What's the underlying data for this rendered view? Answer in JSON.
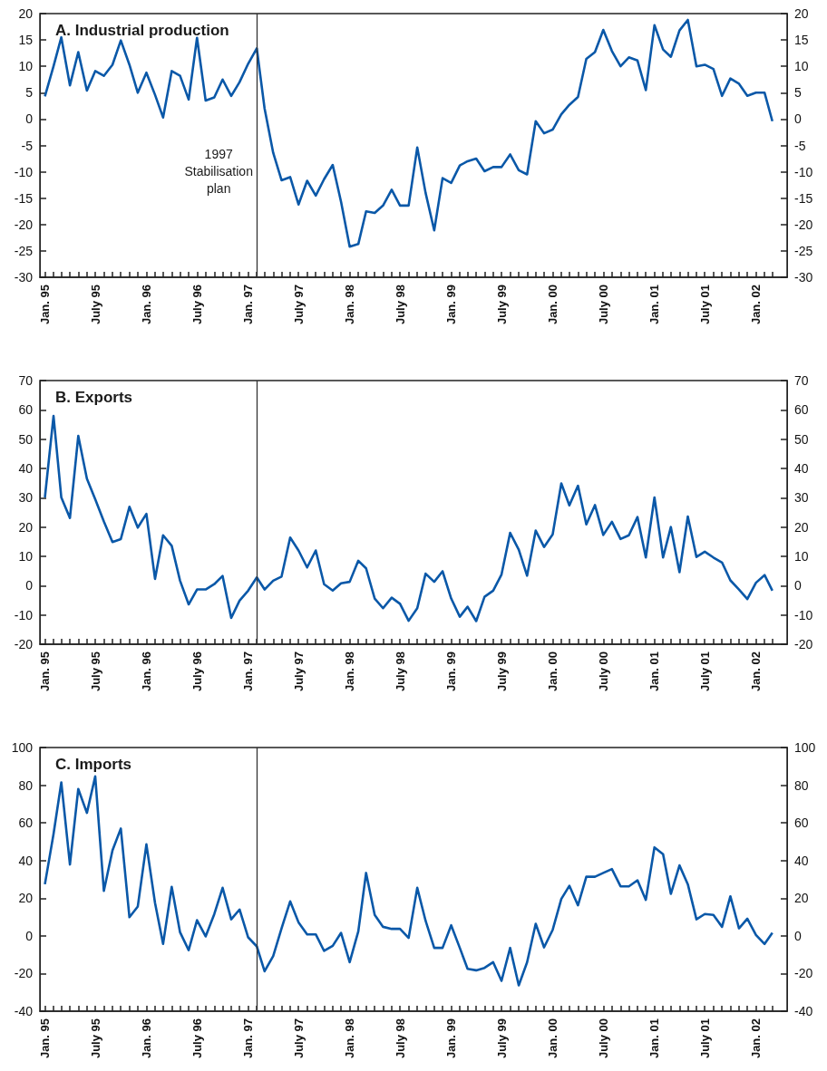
{
  "chart_data": [
    {
      "type": "line",
      "title": "A. Industrial production",
      "color": "#0a58a8",
      "marker": "none",
      "x": [
        "1995-01",
        "1995-02",
        "1995-03",
        "1995-04",
        "1995-05",
        "1995-06",
        "1995-07",
        "1995-08",
        "1995-09",
        "1995-10",
        "1995-11",
        "1995-12",
        "1996-01",
        "1996-02",
        "1996-03",
        "1996-04",
        "1996-05",
        "1996-06",
        "1996-07",
        "1996-08",
        "1996-09",
        "1996-10",
        "1996-11",
        "1996-12",
        "1997-01",
        "1997-02",
        "1997-03",
        "1997-04",
        "1997-05",
        "1997-06",
        "1997-07",
        "1997-08",
        "1997-09",
        "1997-10",
        "1997-11",
        "1997-12",
        "1998-01",
        "1998-02",
        "1998-03",
        "1998-04",
        "1998-05",
        "1998-06",
        "1998-07",
        "1998-08",
        "1998-09",
        "1998-10",
        "1998-11",
        "1998-12",
        "1999-01",
        "1999-02",
        "1999-03",
        "1999-04",
        "1999-05",
        "1999-06",
        "1999-07",
        "1999-08",
        "1999-09",
        "1999-10",
        "1999-11",
        "1999-12",
        "2000-01",
        "2000-02",
        "2000-03",
        "2000-04",
        "2000-05",
        "2000-06",
        "2000-07",
        "2000-08",
        "2000-09",
        "2000-10",
        "2000-11",
        "2000-12",
        "2001-01",
        "2001-02",
        "2001-03",
        "2001-04",
        "2001-05",
        "2001-06",
        "2001-07",
        "2001-08",
        "2001-09",
        "2001-10",
        "2001-11",
        "2001-12",
        "2002-01",
        "2002-02",
        "2002-03"
      ],
      "values": [
        4.3,
        10.0,
        15.5,
        6.4,
        12.7,
        5.4,
        9.1,
        8.2,
        10.3,
        14.9,
        10.3,
        5.0,
        8.8,
        4.6,
        0.3,
        9.1,
        8.2,
        3.7,
        15.4,
        3.5,
        4.1,
        7.5,
        4.4,
        7.0,
        10.5,
        13.4,
        2.0,
        -6.4,
        -11.6,
        -11.0,
        -16.2,
        -11.7,
        -14.5,
        -11.4,
        -8.7,
        -15.7,
        -24.2,
        -23.7,
        -17.5,
        -17.8,
        -16.4,
        -13.4,
        -16.4,
        -16.4,
        -5.4,
        -14.0,
        -21.1,
        -11.2,
        -12.1,
        -8.8,
        -8.0,
        -7.5,
        -9.9,
        -9.1,
        -9.1,
        -6.7,
        -9.7,
        -10.5,
        -0.4,
        -2.7,
        -2.0,
        0.9,
        2.7,
        4.2,
        11.4,
        12.7,
        16.9,
        12.9,
        10.0,
        11.7,
        11.1,
        5.5,
        17.8,
        13.2,
        11.8,
        16.8,
        18.8,
        10.0,
        10.3,
        9.5,
        4.4,
        7.7,
        6.7,
        4.4,
        5.0,
        5.0,
        -0.4
      ],
      "xlim": [
        "1994-12-14",
        "2002-04-23"
      ],
      "xticks": [
        {
          "value": "1995-01",
          "label": "Jan. 95"
        },
        {
          "value": "1995-07",
          "label": "July 95"
        },
        {
          "value": "1996-01",
          "label": "Jan. 96"
        },
        {
          "value": "1996-07",
          "label": "July 96"
        },
        {
          "value": "1997-01",
          "label": "Jan. 97"
        },
        {
          "value": "1997-07",
          "label": "July 97"
        },
        {
          "value": "1998-01",
          "label": "Jan. 98"
        },
        {
          "value": "1998-07",
          "label": "July 98"
        },
        {
          "value": "1999-01",
          "label": "Jan. 99"
        },
        {
          "value": "1999-07",
          "label": "July 99"
        },
        {
          "value": "2000-01",
          "label": "Jan. 00"
        },
        {
          "value": "2000-07",
          "label": "July 00"
        },
        {
          "value": "2001-01",
          "label": "Jan. 01"
        },
        {
          "value": "2001-07",
          "label": "July 01"
        },
        {
          "value": "2002-01",
          "label": "Jan. 02"
        }
      ],
      "ylim": [
        -30,
        20
      ],
      "yticks": [
        -30,
        -25,
        -20,
        -15,
        -10,
        -5,
        0,
        5,
        10,
        15,
        20
      ],
      "y2lim": [
        -30,
        20
      ],
      "y2ticks": [
        -30,
        -25,
        -20,
        -15,
        -10,
        -5,
        0,
        5,
        10,
        15,
        20
      ],
      "ref_lines": [
        {
          "axis": "x",
          "value": "1997-02",
          "label": "1997 Stabilisation plan",
          "color": "#333333"
        }
      ]
    },
    {
      "type": "line",
      "title": "B. Exports",
      "color": "#0a58a8",
      "marker": "none",
      "x": [
        "1995-01",
        "1995-02",
        "1995-03",
        "1995-04",
        "1995-05",
        "1995-06",
        "1995-07",
        "1995-08",
        "1995-09",
        "1995-10",
        "1995-11",
        "1995-12",
        "1996-01",
        "1996-02",
        "1996-03",
        "1996-04",
        "1996-05",
        "1996-06",
        "1996-07",
        "1996-08",
        "1996-09",
        "1996-10",
        "1996-11",
        "1996-12",
        "1997-01",
        "1997-02",
        "1997-03",
        "1997-04",
        "1997-05",
        "1997-06",
        "1997-07",
        "1997-08",
        "1997-09",
        "1997-10",
        "1997-11",
        "1997-12",
        "1998-01",
        "1998-02",
        "1998-03",
        "1998-04",
        "1998-05",
        "1998-06",
        "1998-07",
        "1998-08",
        "1998-09",
        "1998-10",
        "1998-11",
        "1998-12",
        "1999-01",
        "1999-02",
        "1999-03",
        "1999-04",
        "1999-05",
        "1999-06",
        "1999-07",
        "1999-08",
        "1999-09",
        "1999-10",
        "1999-11",
        "1999-12",
        "2000-01",
        "2000-02",
        "2000-03",
        "2000-04",
        "2000-05",
        "2000-06",
        "2000-07",
        "2000-08",
        "2000-09",
        "2000-10",
        "2000-11",
        "2000-12",
        "2001-01",
        "2001-02",
        "2001-03",
        "2001-04",
        "2001-05",
        "2001-06",
        "2001-07",
        "2001-08",
        "2001-09",
        "2001-10",
        "2001-11",
        "2001-12",
        "2002-01",
        "2002-02",
        "2002-03"
      ],
      "values": [
        30.1,
        57.9,
        30.1,
        23.1,
        51.1,
        36.5,
        29.5,
        21.9,
        14.9,
        15.9,
        26.9,
        19.8,
        24.5,
        2.3,
        17.2,
        13.6,
        1.7,
        -6.4,
        -1.3,
        -1.3,
        0.5,
        3.3,
        -11.0,
        -5.1,
        -1.7,
        2.8,
        -1.3,
        1.7,
        3.1,
        16.4,
        12.0,
        6.2,
        12.0,
        0.5,
        -1.7,
        0.8,
        1.3,
        8.5,
        5.9,
        -4.4,
        -7.7,
        -4.1,
        -6.2,
        -12.0,
        -7.7,
        4.1,
        1.3,
        4.9,
        -4.4,
        -10.6,
        -7.2,
        -12.1,
        -3.8,
        -1.7,
        3.8,
        18.0,
        12.3,
        3.4,
        18.8,
        13.2,
        17.5,
        34.9,
        27.4,
        34.1,
        20.9,
        27.5,
        17.3,
        21.8,
        15.9,
        17.2,
        23.4,
        9.6,
        30.1,
        9.6,
        20.0,
        4.6,
        23.6,
        9.8,
        11.6,
        9.6,
        7.9,
        1.8,
        -1.3,
        -4.6,
        1.0,
        3.6,
        -1.7
      ],
      "xlim": [
        "1994-12-14",
        "2002-04-23"
      ],
      "xticks": [
        {
          "value": "1995-01",
          "label": "Jan. 95"
        },
        {
          "value": "1995-07",
          "label": "July 95"
        },
        {
          "value": "1996-01",
          "label": "Jan. 96"
        },
        {
          "value": "1996-07",
          "label": "July 96"
        },
        {
          "value": "1997-01",
          "label": "Jan. 97"
        },
        {
          "value": "1997-07",
          "label": "July 97"
        },
        {
          "value": "1998-01",
          "label": "Jan. 98"
        },
        {
          "value": "1998-07",
          "label": "July 98"
        },
        {
          "value": "1999-01",
          "label": "Jan. 99"
        },
        {
          "value": "1999-07",
          "label": "July 99"
        },
        {
          "value": "2000-01",
          "label": "Jan. 00"
        },
        {
          "value": "2000-07",
          "label": "July 00"
        },
        {
          "value": "2001-01",
          "label": "Jan. 01"
        },
        {
          "value": "2001-07",
          "label": "July 01"
        },
        {
          "value": "2002-01",
          "label": "Jan. 02"
        }
      ],
      "ylim": [
        -20,
        70
      ],
      "yticks": [
        -20,
        -10,
        0,
        10,
        20,
        30,
        40,
        50,
        60,
        70
      ],
      "y2lim": [
        -20,
        70
      ],
      "y2ticks": [
        -20,
        -10,
        0,
        10,
        20,
        30,
        40,
        50,
        60,
        70
      ],
      "ref_lines": [
        {
          "axis": "x",
          "value": "1997-02",
          "color": "#333333"
        }
      ]
    },
    {
      "type": "line",
      "title": "C. Imports",
      "color": "#0a58a8",
      "marker": "none",
      "x": [
        "1995-01",
        "1995-02",
        "1995-03",
        "1995-04",
        "1995-05",
        "1995-06",
        "1995-07",
        "1995-08",
        "1995-09",
        "1995-10",
        "1995-11",
        "1995-12",
        "1996-01",
        "1996-02",
        "1996-03",
        "1996-04",
        "1996-05",
        "1996-06",
        "1996-07",
        "1996-08",
        "1996-09",
        "1996-10",
        "1996-11",
        "1996-12",
        "1997-01",
        "1997-02",
        "1997-03",
        "1997-04",
        "1997-05",
        "1997-06",
        "1997-07",
        "1997-08",
        "1997-09",
        "1997-10",
        "1997-11",
        "1997-12",
        "1998-01",
        "1998-02",
        "1998-03",
        "1998-04",
        "1998-05",
        "1998-06",
        "1998-07",
        "1998-08",
        "1998-09",
        "1998-10",
        "1998-11",
        "1998-12",
        "1999-01",
        "1999-02",
        "1999-03",
        "1999-04",
        "1999-05",
        "1999-06",
        "1999-07",
        "1999-08",
        "1999-09",
        "1999-10",
        "1999-11",
        "1999-12",
        "2000-01",
        "2000-02",
        "2000-03",
        "2000-04",
        "2000-05",
        "2000-06",
        "2000-07",
        "2000-08",
        "2000-09",
        "2000-10",
        "2000-11",
        "2000-12",
        "2001-01",
        "2001-02",
        "2001-03",
        "2001-04",
        "2001-05",
        "2001-06",
        "2001-07",
        "2001-08",
        "2001-09",
        "2001-10",
        "2001-11",
        "2001-12",
        "2002-01",
        "2002-02",
        "2002-03"
      ],
      "values": [
        27.4,
        54.1,
        81.5,
        37.9,
        78.0,
        65.3,
        84.7,
        23.9,
        45.4,
        57.0,
        9.9,
        15.6,
        48.6,
        17.5,
        -4.3,
        26.0,
        1.9,
        -7.6,
        8.3,
        -0.3,
        11.5,
        25.5,
        8.8,
        14.0,
        -0.8,
        -5.6,
        -18.8,
        -10.7,
        4.0,
        18.3,
        7.2,
        0.8,
        0.8,
        -8.0,
        -5.3,
        1.6,
        -14.0,
        2.4,
        33.4,
        11.1,
        4.8,
        3.7,
        3.7,
        -1.1,
        25.5,
        8.0,
        -6.4,
        -6.4,
        5.6,
        -6.4,
        -17.5,
        -18.3,
        -17.0,
        -14.0,
        -23.9,
        -6.4,
        -26.3,
        -14.0,
        6.4,
        -6.1,
        3.2,
        19.6,
        26.6,
        16.2,
        31.4,
        31.4,
        33.4,
        35.5,
        26.3,
        26.3,
        29.5,
        19.1,
        47.0,
        43.3,
        22.3,
        37.4,
        27.4,
        8.8,
        11.6,
        11.1,
        4.8,
        21.0,
        4.0,
        9.1,
        0.5,
        -4.3,
        1.6
      ],
      "xlim": [
        "1994-12-14",
        "2002-04-23"
      ],
      "xticks": [
        {
          "value": "1995-01",
          "label": "Jan. 95"
        },
        {
          "value": "1995-07",
          "label": "July 95"
        },
        {
          "value": "1996-01",
          "label": "Jan. 96"
        },
        {
          "value": "1996-07",
          "label": "July 96"
        },
        {
          "value": "1997-01",
          "label": "Jan. 97"
        },
        {
          "value": "1997-07",
          "label": "July 97"
        },
        {
          "value": "1998-01",
          "label": "Jan. 98"
        },
        {
          "value": "1998-07",
          "label": "July 98"
        },
        {
          "value": "1999-01",
          "label": "Jan. 99"
        },
        {
          "value": "1999-07",
          "label": "July 99"
        },
        {
          "value": "2000-01",
          "label": "Jan. 00"
        },
        {
          "value": "2000-07",
          "label": "July 00"
        },
        {
          "value": "2001-01",
          "label": "Jan. 01"
        },
        {
          "value": "2001-07",
          "label": "July 01"
        },
        {
          "value": "2002-01",
          "label": "Jan. 02"
        }
      ],
      "ylim": [
        -40,
        100
      ],
      "yticks": [
        -40,
        -20,
        0,
        20,
        40,
        60,
        80,
        100
      ],
      "y2lim": [
        -40,
        100
      ],
      "y2ticks": [
        -40,
        -20,
        0,
        20,
        40,
        60,
        80,
        100
      ],
      "ref_lines": [
        {
          "axis": "x",
          "value": "1997-02",
          "color": "#333333"
        }
      ]
    }
  ]
}
